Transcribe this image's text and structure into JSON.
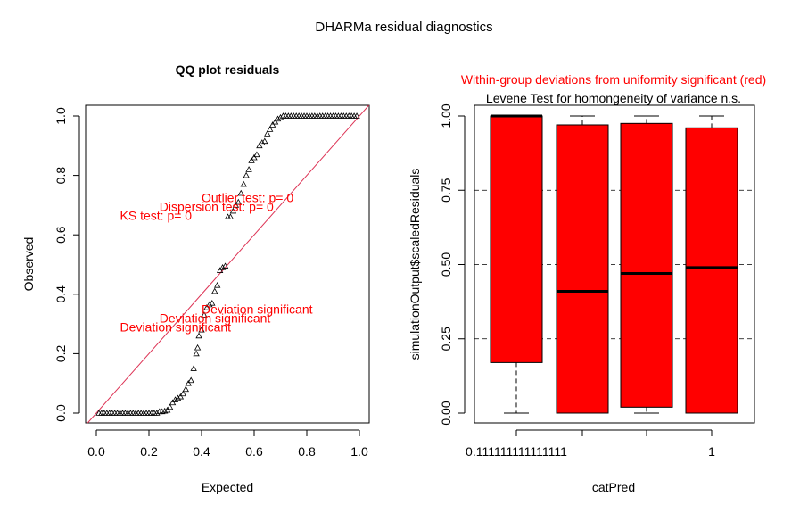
{
  "page_title": "DHARMa residual diagnostics",
  "colors": {
    "red": "#ff0000",
    "line": "#dd3355",
    "black": "#000000"
  },
  "chart_data": [
    {
      "type": "scatter",
      "title": "QQ plot residuals",
      "xlabel": "Expected",
      "ylabel": "Observed",
      "xlim": [
        0,
        1
      ],
      "ylim": [
        0,
        1
      ],
      "x_ticks": [
        "0.0",
        "0.2",
        "0.4",
        "0.6",
        "0.8",
        "1.0"
      ],
      "y_ticks": [
        "0.0",
        "0.2",
        "0.4",
        "0.6",
        "0.8",
        "1.0"
      ],
      "reference_line": "y = x",
      "points": [
        [
          0.01,
          0.0
        ],
        [
          0.02,
          0.0
        ],
        [
          0.03,
          0.0
        ],
        [
          0.04,
          0.0
        ],
        [
          0.05,
          0.0
        ],
        [
          0.06,
          0.0
        ],
        [
          0.07,
          0.0
        ],
        [
          0.08,
          0.0
        ],
        [
          0.09,
          0.0
        ],
        [
          0.1,
          0.0
        ],
        [
          0.11,
          0.0
        ],
        [
          0.12,
          0.0
        ],
        [
          0.13,
          0.0
        ],
        [
          0.14,
          0.0
        ],
        [
          0.15,
          0.0
        ],
        [
          0.16,
          0.0
        ],
        [
          0.17,
          0.0
        ],
        [
          0.18,
          0.0
        ],
        [
          0.19,
          0.0
        ],
        [
          0.2,
          0.0
        ],
        [
          0.21,
          0.0
        ],
        [
          0.22,
          0.0
        ],
        [
          0.23,
          0.0
        ],
        [
          0.24,
          0.005
        ],
        [
          0.25,
          0.005
        ],
        [
          0.26,
          0.007
        ],
        [
          0.27,
          0.01
        ],
        [
          0.28,
          0.02
        ],
        [
          0.29,
          0.035
        ],
        [
          0.3,
          0.045
        ],
        [
          0.31,
          0.05
        ],
        [
          0.32,
          0.055
        ],
        [
          0.33,
          0.065
        ],
        [
          0.34,
          0.08
        ],
        [
          0.35,
          0.1
        ],
        [
          0.36,
          0.11
        ],
        [
          0.37,
          0.15
        ],
        [
          0.38,
          0.2
        ],
        [
          0.385,
          0.22
        ],
        [
          0.39,
          0.26
        ],
        [
          0.4,
          0.28
        ],
        [
          0.41,
          0.33
        ],
        [
          0.42,
          0.355
        ],
        [
          0.43,
          0.365
        ],
        [
          0.44,
          0.37
        ],
        [
          0.45,
          0.41
        ],
        [
          0.46,
          0.43
        ],
        [
          0.47,
          0.48
        ],
        [
          0.48,
          0.49
        ],
        [
          0.49,
          0.495
        ],
        [
          0.5,
          0.66
        ],
        [
          0.51,
          0.66
        ],
        [
          0.52,
          0.68
        ],
        [
          0.53,
          0.7
        ],
        [
          0.54,
          0.71
        ],
        [
          0.55,
          0.74
        ],
        [
          0.56,
          0.77
        ],
        [
          0.57,
          0.8
        ],
        [
          0.58,
          0.82
        ],
        [
          0.59,
          0.85
        ],
        [
          0.6,
          0.86
        ],
        [
          0.61,
          0.87
        ],
        [
          0.62,
          0.9
        ],
        [
          0.63,
          0.91
        ],
        [
          0.64,
          0.915
        ],
        [
          0.65,
          0.94
        ],
        [
          0.66,
          0.955
        ],
        [
          0.67,
          0.97
        ],
        [
          0.68,
          0.98
        ],
        [
          0.69,
          0.99
        ],
        [
          0.7,
          0.995
        ],
        [
          0.71,
          1.0
        ],
        [
          0.72,
          1.0
        ],
        [
          0.73,
          1.0
        ],
        [
          0.74,
          1.0
        ],
        [
          0.75,
          1.0
        ],
        [
          0.76,
          1.0
        ],
        [
          0.77,
          1.0
        ],
        [
          0.78,
          1.0
        ],
        [
          0.79,
          1.0
        ],
        [
          0.8,
          1.0
        ],
        [
          0.81,
          1.0
        ],
        [
          0.82,
          1.0
        ],
        [
          0.83,
          1.0
        ],
        [
          0.84,
          1.0
        ],
        [
          0.85,
          1.0
        ],
        [
          0.86,
          1.0
        ],
        [
          0.87,
          1.0
        ],
        [
          0.88,
          1.0
        ],
        [
          0.89,
          1.0
        ],
        [
          0.9,
          1.0
        ],
        [
          0.91,
          1.0
        ],
        [
          0.92,
          1.0
        ],
        [
          0.93,
          1.0
        ],
        [
          0.94,
          1.0
        ],
        [
          0.95,
          1.0
        ],
        [
          0.96,
          1.0
        ],
        [
          0.97,
          1.0
        ],
        [
          0.98,
          1.0
        ],
        [
          0.99,
          1.0
        ]
      ],
      "annotations": [
        {
          "text": "KS test: p= 0",
          "x": 0.09,
          "y": 0.65
        },
        {
          "text": "Dispersion test: p= 0",
          "x": 0.24,
          "y": 0.68
        },
        {
          "text": "Outlier test: p= 0",
          "x": 0.4,
          "y": 0.71
        },
        {
          "text": "Deviation  significant",
          "x": 0.09,
          "y": 0.275
        },
        {
          "text": "Deviation  significant",
          "x": 0.24,
          "y": 0.305
        },
        {
          "text": "Deviation  significant",
          "x": 0.4,
          "y": 0.335
        }
      ]
    },
    {
      "type": "box",
      "title": "Within-group deviations from uniformity significant (red)",
      "subtitle": "Levene Test for homongeneity of variance n.s.",
      "xlabel": "catPred",
      "ylabel": "simulationOutput$scaledResiduals",
      "ylim": [
        0,
        1
      ],
      "y_ticks": [
        "0.00",
        "0.25",
        "0.50",
        "0.75",
        "1.00"
      ],
      "hlines": [
        0.25,
        0.5,
        0.75
      ],
      "x_tick_labels": [
        "0.111111111111111",
        "",
        "",
        "1"
      ],
      "box_color": "#ff0000",
      "boxes": [
        {
          "min": 0.0,
          "q1": 0.17,
          "median": 1.0,
          "q3": 1.0,
          "max": 1.0
        },
        {
          "min": 0.0,
          "q1": 0.0,
          "median": 0.41,
          "q3": 0.97,
          "max": 1.0
        },
        {
          "min": 0.0,
          "q1": 0.02,
          "median": 0.47,
          "q3": 0.975,
          "max": 1.0
        },
        {
          "min": 0.0,
          "q1": 0.0,
          "median": 0.49,
          "q3": 0.96,
          "max": 1.0
        }
      ]
    }
  ]
}
